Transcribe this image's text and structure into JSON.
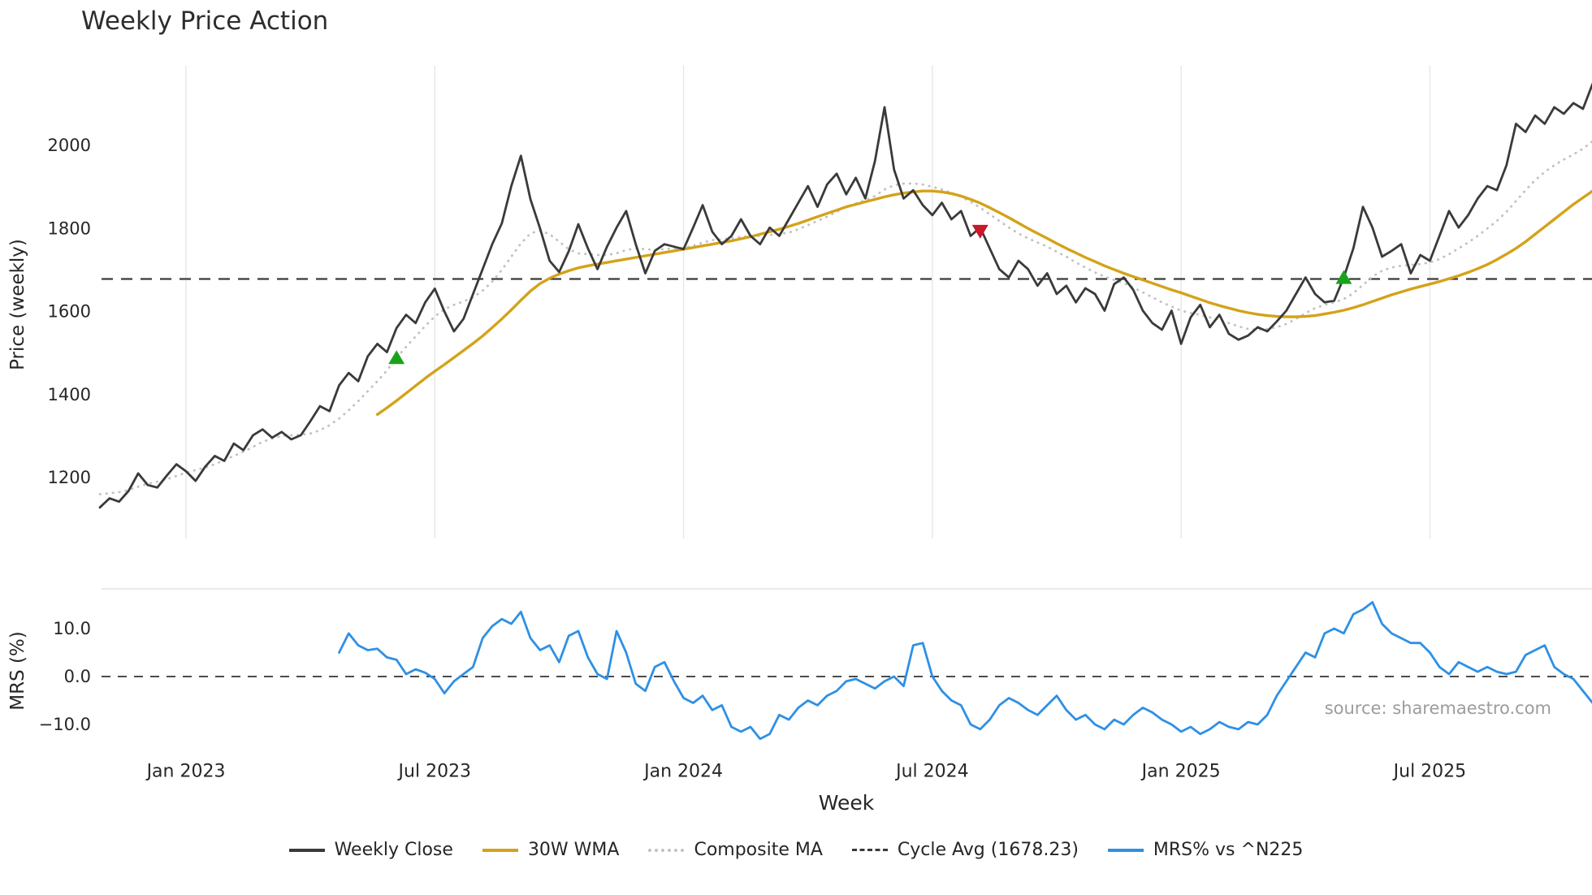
{
  "title": "Weekly Price Action",
  "source": "source: sharemaestro.com",
  "axes": {
    "price_label": "Price (weekly)",
    "mrs_label": "MRS (%)",
    "x_label": "Week"
  },
  "colors": {
    "close": "#3a3a3a",
    "wma": "#d4a21a",
    "composite": "#c2c2c2",
    "cycle": "#3a3a3a",
    "mrs": "#2e90e5",
    "buy_marker": "#1aa31a",
    "sell_marker": "#c9182b",
    "grid": "#e7e7e7"
  },
  "legend": [
    {
      "label": "Weekly Close",
      "color": "#3a3a3a",
      "style": "solid"
    },
    {
      "label": "30W WMA",
      "color": "#d4a21a",
      "style": "solid"
    },
    {
      "label": "Composite MA",
      "color": "#c2c2c2",
      "style": "dotted"
    },
    {
      "label": "Cycle Avg (1678.23)",
      "color": "#3a3a3a",
      "style": "dashed"
    },
    {
      "label": "MRS% vs ^N225",
      "color": "#2e90e5",
      "style": "solid"
    }
  ],
  "chart_data": {
    "type": "line",
    "panels": [
      {
        "name": "price",
        "ylabel": "Price (weekly)",
        "ylim": [
          1053,
          2191
        ],
        "ticks": [
          1200,
          1400,
          1600,
          1800,
          2000
        ]
      },
      {
        "name": "mrs",
        "ylabel": "MRS (%)",
        "ylim": [
          -14.6,
          18.3
        ]
      }
    ],
    "x_tick_labels": [
      "Jan 2023",
      "Jul 2023",
      "Jan 2024",
      "Jul 2024",
      "Jan 2025",
      "Jul 2025"
    ],
    "x_tick_week_index": [
      9,
      35,
      61,
      87,
      113,
      139
    ],
    "price_ticks": [
      2000,
      1800,
      1600,
      1400,
      1200
    ],
    "mrs_ticks": [
      {
        "label": "10.0",
        "value": 10
      },
      {
        "label": "0.0",
        "value": 0
      },
      {
        "label": "−10.0",
        "value": -10
      }
    ],
    "cycle_avg": 1678.23,
    "total_weeks": 157,
    "series": [
      {
        "name": "Weekly Close",
        "panel": "price",
        "color": "#3a3a3a",
        "style": "solid",
        "width": 2.8,
        "start_week": 0,
        "values": [
          1128,
          1150,
          1142,
          1168,
          1210,
          1182,
          1176,
          1205,
          1232,
          1215,
          1192,
          1226,
          1252,
          1240,
          1282,
          1266,
          1302,
          1316,
          1296,
          1310,
          1292,
          1302,
          1336,
          1372,
          1360,
          1422,
          1452,
          1432,
          1492,
          1522,
          1502,
          1560,
          1592,
          1572,
          1622,
          1655,
          1600,
          1552,
          1582,
          1642,
          1702,
          1762,
          1812,
          1902,
          1975,
          1870,
          1800,
          1722,
          1695,
          1745,
          1810,
          1752,
          1702,
          1756,
          1802,
          1842,
          1762,
          1692,
          1746,
          1762,
          1756,
          1750,
          1802,
          1856,
          1792,
          1762,
          1782,
          1822,
          1782,
          1762,
          1802,
          1782,
          1822,
          1862,
          1902,
          1852,
          1906,
          1932,
          1882,
          1922,
          1872,
          1962,
          2092,
          1942,
          1872,
          1892,
          1856,
          1832,
          1862,
          1822,
          1842,
          1782,
          1802,
          1752,
          1702,
          1682,
          1722,
          1702,
          1662,
          1692,
          1642,
          1662,
          1622,
          1656,
          1642,
          1602,
          1666,
          1682,
          1652,
          1602,
          1572,
          1556,
          1602,
          1522,
          1586,
          1616,
          1562,
          1592,
          1546,
          1532,
          1542,
          1562,
          1552,
          1576,
          1602,
          1642,
          1682,
          1642,
          1622,
          1626,
          1682,
          1752,
          1852,
          1802,
          1732,
          1746,
          1762,
          1692,
          1736,
          1722,
          1782,
          1842,
          1802,
          1832,
          1872,
          1902,
          1892,
          1952,
          2052,
          2032,
          2072,
          2052,
          2092,
          2076,
          2102,
          2088,
          2148
        ]
      },
      {
        "name": "30W WMA",
        "panel": "price",
        "color": "#d4a21a",
        "style": "solid",
        "width": 3.4,
        "start_week": 29,
        "values": [
          1352,
          1368,
          1385,
          1403,
          1421,
          1439,
          1456,
          1472,
          1489,
          1506,
          1523,
          1541,
          1561,
          1582,
          1604,
          1627,
          1649,
          1667,
          1680,
          1690,
          1698,
          1705,
          1710,
          1714,
          1718,
          1722,
          1726,
          1730,
          1734,
          1738,
          1742,
          1746,
          1750,
          1754,
          1758,
          1762,
          1766,
          1770,
          1775,
          1780,
          1786,
          1792,
          1798,
          1805,
          1812,
          1820,
          1828,
          1836,
          1844,
          1852,
          1858,
          1864,
          1870,
          1876,
          1881,
          1885,
          1888,
          1890,
          1890,
          1888,
          1884,
          1878,
          1870,
          1861,
          1850,
          1838,
          1826,
          1813,
          1800,
          1788,
          1776,
          1764,
          1752,
          1741,
          1730,
          1720,
          1710,
          1701,
          1692,
          1684,
          1676,
          1668,
          1660,
          1652,
          1645,
          1637,
          1629,
          1621,
          1614,
          1608,
          1602,
          1597,
          1593,
          1590,
          1588,
          1587,
          1587,
          1588,
          1590,
          1594,
          1598,
          1603,
          1609,
          1616,
          1624,
          1632,
          1640,
          1647,
          1654,
          1660,
          1666,
          1672,
          1679,
          1686,
          1694,
          1703,
          1713,
          1725,
          1738,
          1752,
          1768,
          1786,
          1804,
          1822,
          1840,
          1858,
          1874,
          1890
        ]
      },
      {
        "name": "Composite MA",
        "panel": "price",
        "color": "#c2c2c2",
        "style": "dotted",
        "width": 2.8,
        "start_week": 0,
        "values": [
          1160,
          1162,
          1165,
          1170,
          1178,
          1185,
          1190,
          1196,
          1204,
          1212,
          1218,
          1224,
          1232,
          1242,
          1252,
          1262,
          1274,
          1286,
          1294,
          1300,
          1302,
          1303,
          1306,
          1314,
          1326,
          1342,
          1362,
          1384,
          1408,
          1432,
          1458,
          1488,
          1515,
          1540,
          1565,
          1588,
          1605,
          1616,
          1624,
          1634,
          1650,
          1672,
          1700,
          1732,
          1764,
          1788,
          1795,
          1786,
          1768,
          1750,
          1740,
          1738,
          1736,
          1736,
          1740,
          1748,
          1752,
          1750,
          1748,
          1750,
          1752,
          1754,
          1758,
          1766,
          1772,
          1774,
          1776,
          1780,
          1782,
          1782,
          1784,
          1786,
          1790,
          1798,
          1808,
          1818,
          1828,
          1840,
          1852,
          1860,
          1868,
          1878,
          1894,
          1904,
          1908,
          1908,
          1906,
          1900,
          1894,
          1886,
          1876,
          1864,
          1850,
          1834,
          1818,
          1802,
          1788,
          1776,
          1766,
          1756,
          1744,
          1732,
          1718,
          1706,
          1694,
          1684,
          1676,
          1668,
          1658,
          1646,
          1634,
          1622,
          1612,
          1602,
          1596,
          1592,
          1586,
          1580,
          1572,
          1564,
          1558,
          1556,
          1558,
          1562,
          1570,
          1582,
          1596,
          1608,
          1616,
          1622,
          1630,
          1644,
          1664,
          1684,
          1698,
          1706,
          1710,
          1712,
          1714,
          1718,
          1726,
          1738,
          1752,
          1766,
          1782,
          1800,
          1818,
          1840,
          1866,
          1892,
          1916,
          1936,
          1952,
          1966,
          1978,
          1992,
          2010
        ]
      },
      {
        "name": "MRS% vs ^N225",
        "panel": "mrs",
        "color": "#2e90e5",
        "style": "solid",
        "width": 2.8,
        "start_week": 25,
        "values": [
          5.0,
          9.0,
          6.5,
          5.5,
          5.8,
          4.0,
          3.5,
          0.5,
          1.5,
          0.8,
          -0.5,
          -3.5,
          -1.0,
          0.5,
          2.0,
          8.0,
          10.5,
          12.0,
          11.0,
          13.5,
          8.0,
          5.5,
          6.5,
          3.0,
          8.5,
          9.5,
          4.0,
          0.5,
          -0.5,
          9.5,
          5.0,
          -1.5,
          -3.0,
          2.0,
          3.0,
          -1.0,
          -4.5,
          -5.5,
          -4.0,
          -7.0,
          -6.0,
          -10.5,
          -11.5,
          -10.5,
          -13.0,
          -12.0,
          -8.0,
          -9.0,
          -6.5,
          -5.0,
          -6.0,
          -4.0,
          -3.0,
          -1.0,
          -0.5,
          -1.5,
          -2.5,
          -1.0,
          0.0,
          -2.0,
          6.5,
          7.0,
          0.0,
          -3.0,
          -5.0,
          -6.0,
          -10.0,
          -11.0,
          -9.0,
          -6.0,
          -4.5,
          -5.5,
          -7.0,
          -8.0,
          -6.0,
          -4.0,
          -7.0,
          -9.0,
          -8.0,
          -10.0,
          -11.0,
          -9.0,
          -10.0,
          -8.0,
          -6.5,
          -7.5,
          -9.0,
          -10.0,
          -11.5,
          -10.5,
          -12.0,
          -11.0,
          -9.5,
          -10.5,
          -11.0,
          -9.5,
          -10.0,
          -8.0,
          -4.0,
          -1.0,
          2.0,
          5.0,
          4.0,
          9.0,
          10.0,
          9.0,
          13.0,
          14.0,
          15.5,
          11.0,
          9.0,
          8.0,
          7.0,
          7.0,
          5.0,
          2.0,
          0.5,
          3.0,
          2.0,
          1.0,
          2.0,
          1.0,
          0.5,
          1.0,
          4.5,
          5.5,
          6.5,
          2.0,
          0.5,
          -0.5,
          -3.0,
          -5.5
        ]
      }
    ],
    "markers": [
      {
        "shape": "triangle-up",
        "color": "#1aa31a",
        "week": 31,
        "price": 1489
      },
      {
        "shape": "triangle-down",
        "color": "#c9182b",
        "week": 92,
        "price": 1793
      },
      {
        "shape": "triangle-up",
        "color": "#1aa31a",
        "week": 130,
        "price": 1682
      }
    ]
  }
}
